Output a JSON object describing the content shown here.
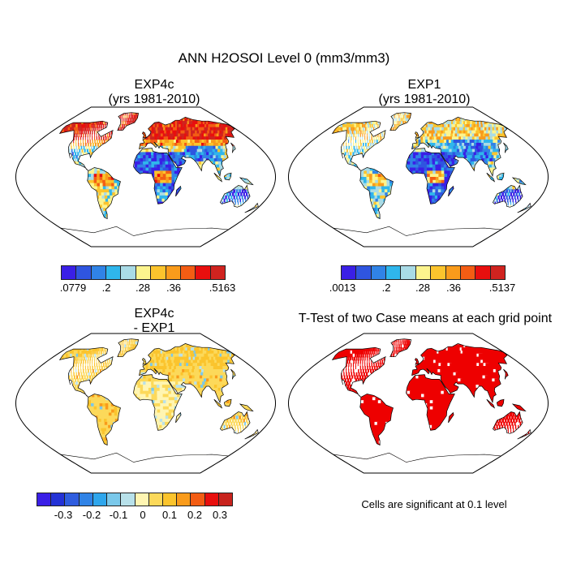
{
  "figure": {
    "title": "ANN H2OSOI Level 0 (mm3/mm3)"
  },
  "panels": [
    {
      "id": "exp4c",
      "title": "EXP4c\n(yrs 1981-2010)",
      "palette": "seq"
    },
    {
      "id": "exp1",
      "title": "EXP1\n(yrs 1981-2010)",
      "palette": "seq"
    },
    {
      "id": "diff",
      "title": "EXP4c\n- EXP1",
      "palette": "div"
    },
    {
      "id": "ttest",
      "title": "T-Test of two Case means at each grid point",
      "palette": "sig"
    }
  ],
  "colorbars": {
    "exp4c": {
      "labels": [
        ".0779",
        ".2",
        ".28",
        ".36",
        ".5163"
      ]
    },
    "exp1": {
      "labels": [
        ".0013",
        ".2",
        ".28",
        ".36",
        ".5137"
      ]
    },
    "diff": {
      "labels": [
        "-0.3",
        "-0.2",
        "-0.1",
        "0",
        "0.1",
        "0.2",
        "0.3"
      ]
    }
  },
  "note": "Cells are significant at 0.1 level",
  "colors": {
    "seq": [
      "#3a1fe6",
      "#2f55e0",
      "#3083e6",
      "#2fb6ec",
      "#a9dbe6",
      "#fcf48e",
      "#fbc42d",
      "#f99b1b",
      "#f35d14",
      "#e80f0e",
      "#d0231f"
    ],
    "div": [
      "#3a1fe6",
      "#2432d6",
      "#2f5ddf",
      "#3083e6",
      "#2fa6ec",
      "#7ac8ea",
      "#b8e1ea",
      "#fff5b2",
      "#fcd95a",
      "#fbc42d",
      "#f99b1b",
      "#f35d14",
      "#e80f0e",
      "#c8231d"
    ],
    "sig_fill": "#ee0000",
    "ocean": "#ffffff",
    "coast": "#000000"
  }
}
